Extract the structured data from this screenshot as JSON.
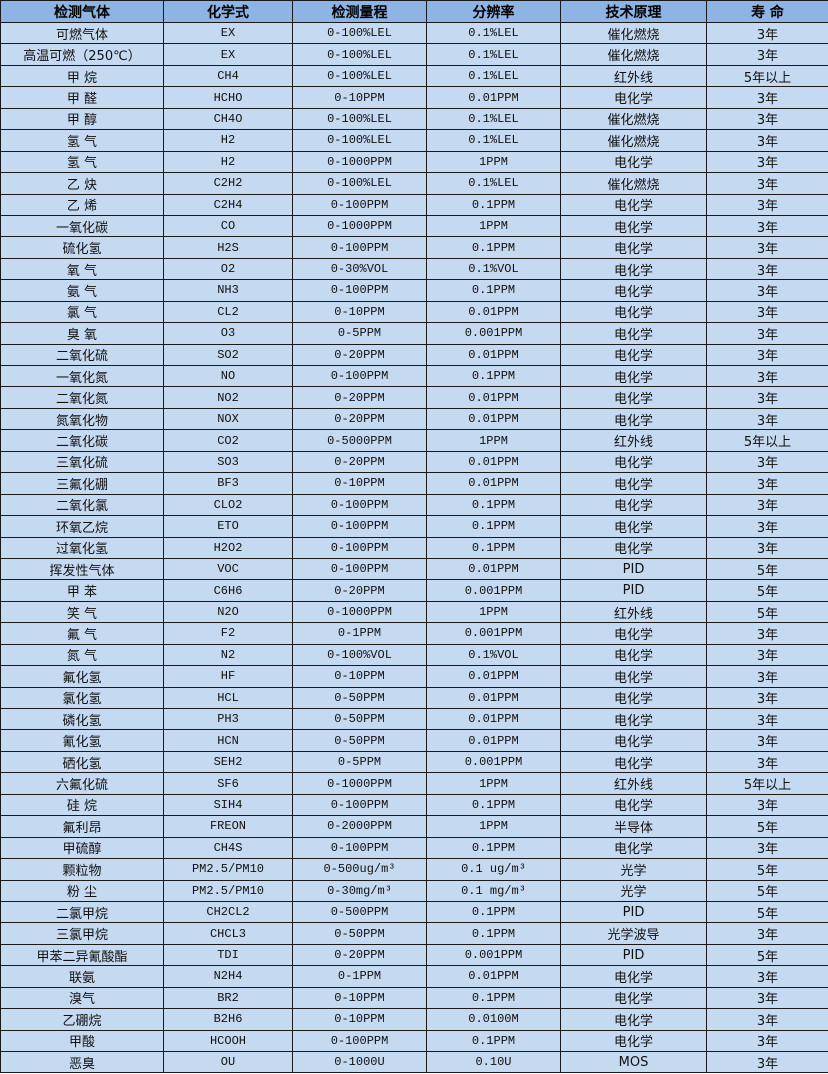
{
  "headers": [
    "检测气体",
    "化学式",
    "检测量程",
    "分辨率",
    "技术原理",
    "寿 命"
  ],
  "rows": [
    [
      "可燃气体",
      "EX",
      "0-100%LEL",
      "0.1%LEL",
      "催化燃烧",
      "3年"
    ],
    [
      "高温可燃（250℃）",
      "EX",
      "0-100%LEL",
      "0.1%LEL",
      "催化燃烧",
      "3年"
    ],
    [
      "甲 烷",
      "CH4",
      "0-100%LEL",
      "0.1%LEL",
      "红外线",
      "5年以上"
    ],
    [
      "甲 醛",
      "HCHO",
      "0-10PPM",
      "0.01PPM",
      "电化学",
      "3年"
    ],
    [
      "甲 醇",
      "CH4O",
      "0-100%LEL",
      "0.1%LEL",
      "催化燃烧",
      "3年"
    ],
    [
      "氢 气",
      "H2",
      "0-100%LEL",
      "0.1%LEL",
      "催化燃烧",
      "3年"
    ],
    [
      "氢 气",
      "H2",
      "0-1000PPM",
      "1PPM",
      "电化学",
      "3年"
    ],
    [
      "乙 炔",
      "C2H2",
      "0-100%LEL",
      "0.1%LEL",
      "催化燃烧",
      "3年"
    ],
    [
      "乙 烯",
      "C2H4",
      "0-100PPM",
      "0.1PPM",
      "电化学",
      "3年"
    ],
    [
      "一氧化碳",
      "CO",
      "0-1000PPM",
      "1PPM",
      "电化学",
      "3年"
    ],
    [
      "硫化氢",
      "H2S",
      "0-100PPM",
      "0.1PPM",
      "电化学",
      "3年"
    ],
    [
      "氧 气",
      "O2",
      "0-30%VOL",
      "0.1%VOL",
      "电化学",
      "3年"
    ],
    [
      "氨 气",
      "NH3",
      "0-100PPM",
      "0.1PPM",
      "电化学",
      "3年"
    ],
    [
      "氯 气",
      "CL2",
      "0-10PPM",
      "0.01PPM",
      "电化学",
      "3年"
    ],
    [
      "臭 氧",
      "O3",
      "0-5PPM",
      "0.001PPM",
      "电化学",
      "3年"
    ],
    [
      "二氧化硫",
      "SO2",
      "0-20PPM",
      "0.01PPM",
      "电化学",
      "3年"
    ],
    [
      "一氧化氮",
      "NO",
      "0-100PPM",
      "0.1PPM",
      "电化学",
      "3年"
    ],
    [
      "二氧化氮",
      "NO2",
      "0-20PPM",
      "0.01PPM",
      "电化学",
      "3年"
    ],
    [
      "氮氧化物",
      "NOX",
      "0-20PPM",
      "0.01PPM",
      "电化学",
      "3年"
    ],
    [
      "二氧化碳",
      "CO2",
      "0-5000PPM",
      "1PPM",
      "红外线",
      "5年以上"
    ],
    [
      "三氧化硫",
      "SO3",
      "0-20PPM",
      "0.01PPM",
      "电化学",
      "3年"
    ],
    [
      "三氟化硼",
      "BF3",
      "0-10PPM",
      "0.01PPM",
      "电化学",
      "3年"
    ],
    [
      "二氧化氯",
      "CLO2",
      "0-100PPM",
      "0.1PPM",
      "电化学",
      "3年"
    ],
    [
      "环氧乙烷",
      "ETO",
      "0-100PPM",
      "0.1PPM",
      "电化学",
      "3年"
    ],
    [
      "过氧化氢",
      "H2O2",
      "0-100PPM",
      "0.1PPM",
      "电化学",
      "3年"
    ],
    [
      "挥发性气体",
      "VOC",
      "0-100PPM",
      "0.01PPM",
      "PID",
      "5年"
    ],
    [
      "甲 苯",
      "C6H6",
      "0-20PPM",
      "0.001PPM",
      "PID",
      "5年"
    ],
    [
      "笑 气",
      "N2O",
      "0-1000PPM",
      "1PPM",
      "红外线",
      "5年"
    ],
    [
      "氟 气",
      "F2",
      "0-1PPM",
      "0.001PPM",
      "电化学",
      "3年"
    ],
    [
      "氮 气",
      "N2",
      "0-100%VOL",
      "0.1%VOL",
      "电化学",
      "3年"
    ],
    [
      "氟化氢",
      "HF",
      "0-10PPM",
      "0.01PPM",
      "电化学",
      "3年"
    ],
    [
      "氯化氢",
      "HCL",
      "0-50PPM",
      "0.01PPM",
      "电化学",
      "3年"
    ],
    [
      "磷化氢",
      "PH3",
      "0-50PPM",
      "0.01PPM",
      "电化学",
      "3年"
    ],
    [
      "氰化氢",
      "HCN",
      "0-50PPM",
      "0.01PPM",
      "电化学",
      "3年"
    ],
    [
      "硒化氢",
      "SEH2",
      "0-5PPM",
      "0.001PPM",
      "电化学",
      "3年"
    ],
    [
      "六氟化硫",
      "SF6",
      "0-1000PPM",
      "1PPM",
      "红外线",
      "5年以上"
    ],
    [
      "硅 烷",
      "SIH4",
      "0-100PPM",
      "0.1PPM",
      "电化学",
      "3年"
    ],
    [
      "氟利昂",
      "FREON",
      "0-2000PPM",
      "1PPM",
      "半导体",
      "5年"
    ],
    [
      "甲硫醇",
      "CH4S",
      "0-100PPM",
      "0.1PPM",
      "电化学",
      "3年"
    ],
    [
      "颗粒物",
      "PM2.5/PM10",
      "0-500ug/m³",
      "0.1 ug/m³",
      "光学",
      "5年"
    ],
    [
      "粉 尘",
      "PM2.5/PM10",
      "0-30mg/m³",
      "0.1 mg/m³",
      "光学",
      "5年"
    ],
    [
      "二氯甲烷",
      "CH2CL2",
      "0-500PPM",
      "0.1PPM",
      "PID",
      "5年"
    ],
    [
      "三氯甲烷",
      "CHCL3",
      "0-50PPM",
      "0.1PPM",
      "光学波导",
      "3年"
    ],
    [
      "甲苯二异氰酸酯",
      "TDI",
      "0-20PPM",
      "0.001PPM",
      "PID",
      "5年"
    ],
    [
      "联氨",
      "N2H4",
      "0-1PPM",
      "0.01PPM",
      "电化学",
      "3年"
    ],
    [
      "溴气",
      "BR2",
      "0-10PPM",
      "0.1PPM",
      "电化学",
      "3年"
    ],
    [
      "乙硼烷",
      "B2H6",
      "0-10PPM",
      "0.0100M",
      "电化学",
      "3年"
    ],
    [
      "甲酸",
      "HCOOH",
      "0-100PPM",
      "0.1PPM",
      "电化学",
      "3年"
    ],
    [
      "恶臭",
      "OU",
      "0-1000U",
      "0.10U",
      "MOS",
      "3年"
    ]
  ],
  "colors": {
    "header_bg": "#8DB4E2",
    "row_bg": "#C5D9F1",
    "border": "#1a1a1a"
  }
}
